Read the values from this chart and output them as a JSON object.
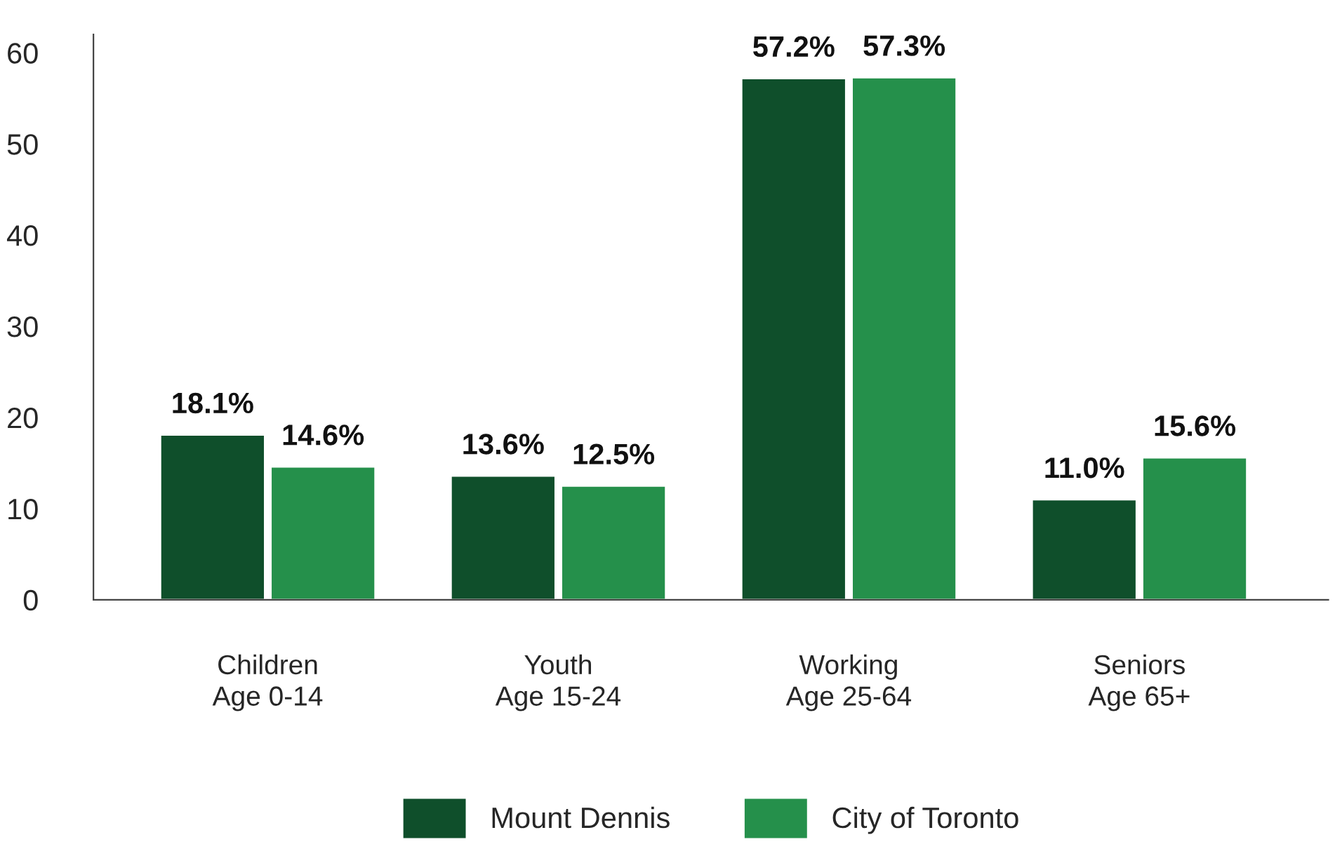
{
  "chart_data": {
    "type": "bar",
    "categories": [
      "Children\nAge 0-14",
      "Youth\nAge 15-24",
      "Working\nAge 25-64",
      "Seniors\nAge 65+"
    ],
    "series": [
      {
        "name": "Mount Dennis",
        "color": "#0f4f2b",
        "values": [
          18.1,
          13.6,
          57.2,
          11.0
        ],
        "value_labels": [
          "18.1%",
          "13.6%",
          "57.2%",
          "11.0%"
        ]
      },
      {
        "name": "City of Toronto",
        "color": "#25904b",
        "values": [
          14.6,
          12.5,
          57.3,
          15.6
        ],
        "value_labels": [
          "14.6%",
          "12.5%",
          "57.3%",
          "15.6%"
        ]
      }
    ],
    "ylim": [
      0,
      62
    ],
    "yticks": [
      0,
      10,
      20,
      30,
      40,
      50,
      60
    ],
    "grid": false,
    "legend": "bottom"
  }
}
